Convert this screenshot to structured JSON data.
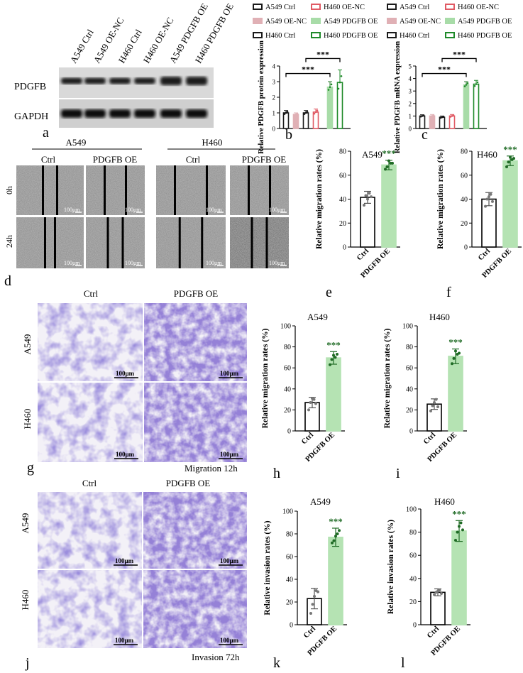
{
  "panel_a": {
    "lanes": [
      "A549 Ctrl",
      "A549 OE-NC",
      "H460 Ctrl",
      "H460 OE-NC",
      "A549 PDGFB OE",
      "H460 PDGFB OE"
    ],
    "rows": [
      "PDGFB",
      "GAPDH"
    ],
    "letter": "a"
  },
  "legend": {
    "entries": [
      {
        "label": "A549 Ctrl",
        "color": "#1a1a1a",
        "fill": "#ffffff"
      },
      {
        "label": "H460 OE-NC",
        "color": "#e05a64",
        "fill": "#ffffff"
      },
      {
        "label": "A549 OE-NC",
        "color": "#e0b0b5",
        "fill": "#e0b0b5"
      },
      {
        "label": "A549 PDGFB OE",
        "color": "#a8dca8",
        "fill": "#a8dca8"
      },
      {
        "label": "H460 Ctrl",
        "color": "#1a1a1a",
        "fill": "#ffffff"
      },
      {
        "label": "H460 PDGFB OE",
        "color": "#1f8a2a",
        "fill": "#ffffff"
      }
    ]
  },
  "scratch": {
    "groups": [
      "A549",
      "H460"
    ],
    "conditions": [
      "Ctrl",
      "PDGFB OE"
    ],
    "timepoints": [
      "0h",
      "24h"
    ],
    "scale": "100μm",
    "letter": "d"
  },
  "transwell_migration": {
    "conditions": [
      "Ctrl",
      "PDGFB OE"
    ],
    "cells": [
      "A549",
      "H460"
    ],
    "scales": [
      "100μm",
      "100μm",
      "100μm",
      "100μm"
    ],
    "caption": "Migration 12h",
    "letter": "g"
  },
  "transwell_invasion": {
    "conditions": [
      "Ctrl",
      "PDGFB OE"
    ],
    "cells": [
      "A549",
      "H460"
    ],
    "scales": [
      "100μm",
      "100μm",
      "100μm",
      "100μm"
    ],
    "caption": "Invasion 72h",
    "letter": "j"
  },
  "chart_data": [
    {
      "id": "b",
      "type": "bar",
      "letter": "b",
      "ylabel": "Relative PDGFB protein expression",
      "ylim": [
        0,
        4
      ],
      "yticks": [
        0,
        1,
        2,
        3,
        4
      ],
      "categories": [
        "A549 Ctrl",
        "A549 OE-NC",
        "H460 Ctrl",
        "H460 OE-NC",
        "A549 PDGFB OE",
        "H460 PDGFB OE"
      ],
      "values": [
        1.0,
        0.9,
        1.0,
        1.05,
        2.65,
        2.95
      ],
      "errors": [
        0.15,
        0.1,
        0.15,
        0.2,
        0.35,
        0.8
      ],
      "significance": [
        "***",
        "***"
      ]
    },
    {
      "id": "c",
      "type": "bar",
      "letter": "c",
      "ylabel": "Relative PDGFB mRNA expression",
      "ylim": [
        0,
        5
      ],
      "yticks": [
        0,
        1,
        2,
        3,
        4,
        5
      ],
      "categories": [
        "A549 Ctrl",
        "A549 OE-NC",
        "H460 Ctrl",
        "H460 OE-NC",
        "A549 PDGFB OE",
        "H460 PDGFB OE"
      ],
      "values": [
        1.0,
        1.0,
        0.9,
        1.0,
        3.5,
        3.55
      ],
      "errors": [
        0.1,
        0.12,
        0.1,
        0.12,
        0.25,
        0.3
      ],
      "significance": [
        "***",
        "***"
      ]
    },
    {
      "id": "e",
      "type": "bar",
      "letter": "e",
      "title": "A549",
      "ylabel": "Relative migration rates (%)",
      "ylim": [
        0,
        80
      ],
      "yticks": [
        0,
        20,
        40,
        60,
        80
      ],
      "categories": [
        "Ctrl",
        "PDGFB OE"
      ],
      "values": [
        41.5,
        68.5
      ],
      "errors": [
        5,
        4
      ],
      "points": [
        [
          35,
          43,
          40,
          45,
          42
        ],
        [
          65,
          67,
          72,
          70,
          70
        ]
      ],
      "significance": "***"
    },
    {
      "id": "f",
      "type": "bar",
      "letter": "f",
      "title": "H460",
      "ylabel": "Relative migration rates (%)",
      "ylim": [
        0,
        80
      ],
      "yticks": [
        0,
        20,
        40,
        60,
        80
      ],
      "categories": [
        "Ctrl",
        "PDGFB OE"
      ],
      "values": [
        40,
        72
      ],
      "errors": [
        5.5,
        4
      ],
      "points": [
        [
          34,
          40,
          42,
          44,
          38
        ],
        [
          67,
          71,
          75,
          73,
          74
        ]
      ],
      "significance": "***"
    },
    {
      "id": "h",
      "type": "bar",
      "letter": "h",
      "title": "A549",
      "ylabel": "Relative migration rates (%)",
      "ylim": [
        0,
        100
      ],
      "yticks": [
        0,
        20,
        40,
        60,
        80,
        100
      ],
      "categories": [
        "Ctrl",
        "PDGFB OE"
      ],
      "values": [
        27,
        69.5
      ],
      "errors": [
        5,
        6
      ],
      "points": [
        [
          20,
          27,
          31,
          30,
          26
        ],
        [
          63,
          68,
          72,
          70,
          73
        ]
      ],
      "significance": "***"
    },
    {
      "id": "i",
      "type": "bar",
      "letter": "i",
      "title": "H460",
      "ylabel": "Relative migration rates (%)",
      "ylim": [
        0,
        100
      ],
      "yticks": [
        0,
        20,
        40,
        60,
        80,
        100
      ],
      "categories": [
        "Ctrl",
        "PDGFB OE"
      ],
      "values": [
        25.5,
        71
      ],
      "errors": [
        5,
        7
      ],
      "points": [
        [
          19,
          24,
          27,
          30,
          23
        ],
        [
          64,
          69,
          76,
          73,
          74
        ]
      ],
      "significance": "***"
    },
    {
      "id": "k",
      "type": "bar",
      "letter": "k",
      "title": "A549",
      "ylabel": "Relative invasion rates (%)",
      "ylim": [
        0,
        100
      ],
      "yticks": [
        0,
        20,
        40,
        60,
        80,
        100
      ],
      "categories": [
        "Ctrl",
        "PDGFB OE"
      ],
      "values": [
        23,
        77
      ],
      "errors": [
        9,
        8
      ],
      "points": [
        [
          10,
          18,
          25,
          30,
          29
        ],
        [
          72,
          74,
          78,
          80,
          83
        ]
      ],
      "significance": "***"
    },
    {
      "id": "l",
      "type": "bar",
      "letter": "l",
      "title": "H460",
      "ylabel": "Relative invasion rates (%)",
      "ylim": [
        0,
        100
      ],
      "yticks": [
        0,
        20,
        40,
        60,
        80,
        100
      ],
      "categories": [
        "Ctrl",
        "PDGFB OE"
      ],
      "values": [
        28,
        81
      ],
      "errors": [
        3,
        9
      ],
      "points": [
        [
          26,
          28,
          29,
          30,
          27
        ],
        [
          73,
          80,
          85,
          88,
          82
        ]
      ],
      "significance": "***"
    }
  ]
}
